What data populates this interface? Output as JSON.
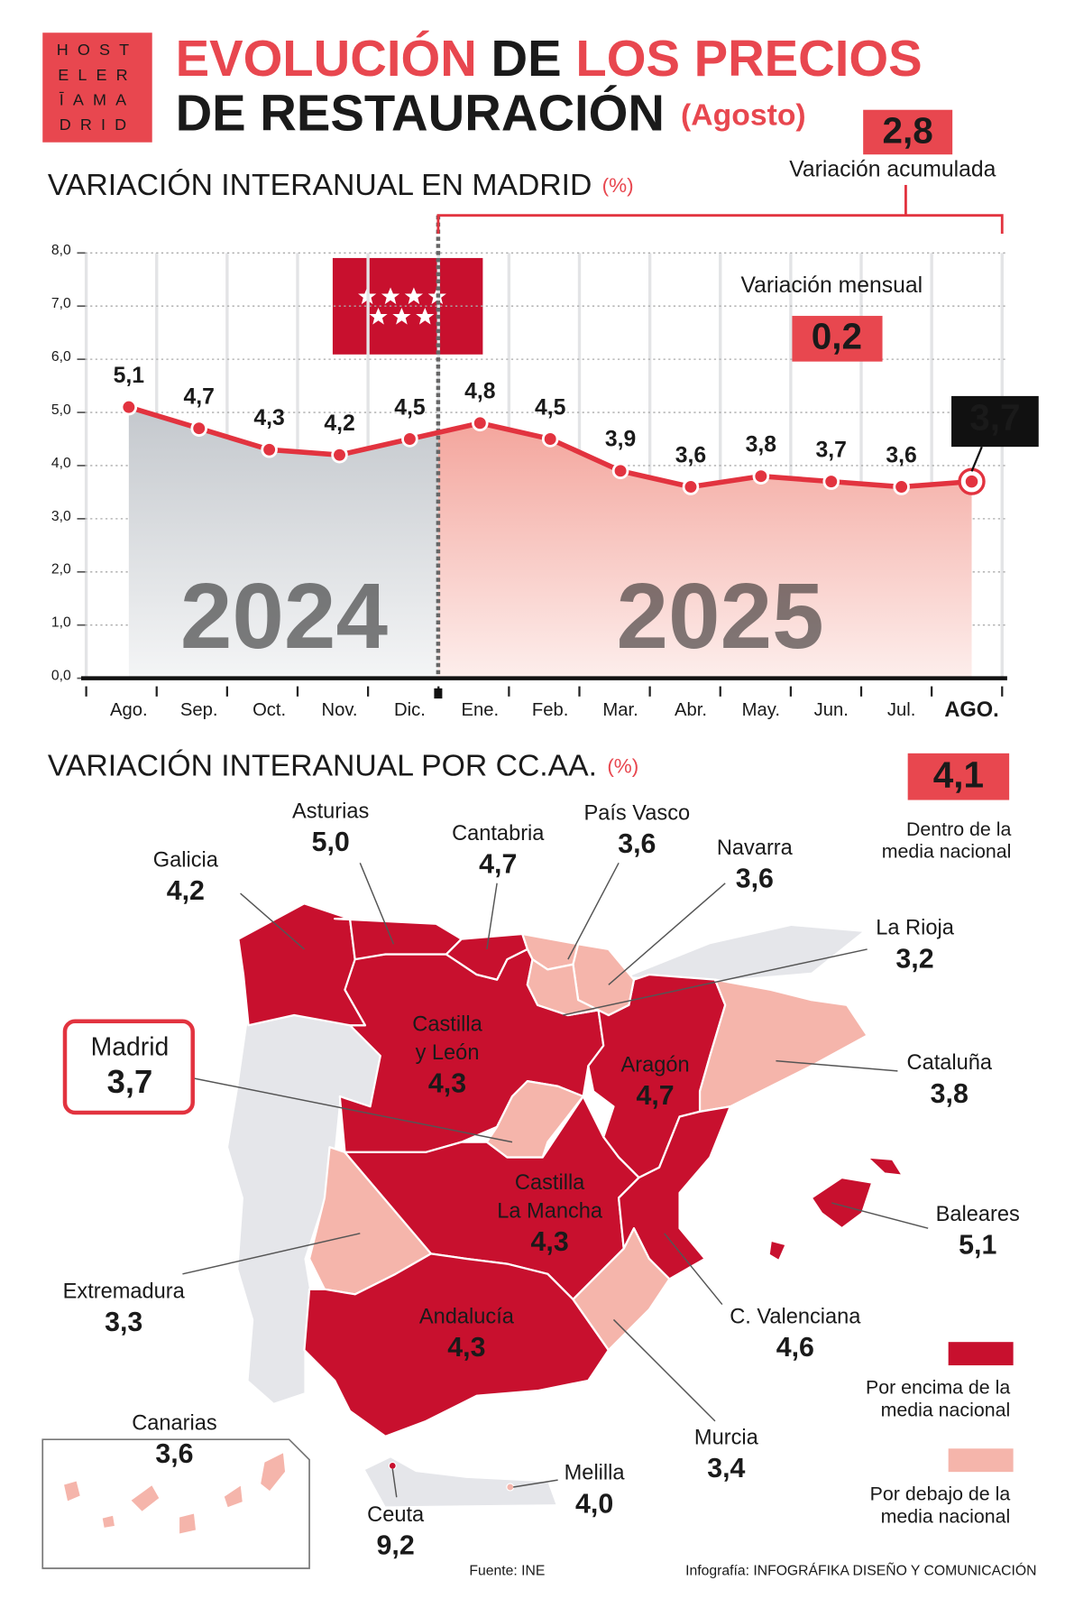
{
  "header": {
    "logo": [
      "HOST",
      "ELER",
      "ĪAMA",
      "DRID"
    ],
    "title_lines": [
      [
        {
          "text": "EVOLUCIÓN",
          "color": "#e8474f"
        },
        {
          "text": "DE",
          "color": "#1a1a1a"
        },
        {
          "text": "LOS PRECIOS",
          "color": "#e8474f"
        }
      ],
      [
        {
          "text": "DE RESTAURACIÓN",
          "color": "#1a1a1a"
        },
        {
          "text": "(Agosto)",
          "color": "#e8474f"
        }
      ]
    ]
  },
  "chart_data": {
    "type": "line",
    "title": "VARIACIÓN INTERANUAL EN MADRID",
    "unit": "(%)",
    "categories": [
      "Ago.",
      "Sep.",
      "Oct.",
      "Nov.",
      "Dic.",
      "Ene.",
      "Feb.",
      "Mar.",
      "Abr.",
      "May.",
      "Jun.",
      "Jul.",
      "AGO."
    ],
    "values": [
      5.1,
      4.7,
      4.3,
      4.2,
      4.5,
      4.8,
      4.5,
      3.9,
      3.6,
      3.8,
      3.7,
      3.6,
      3.7
    ],
    "value_labels": [
      "5,1",
      "4,7",
      "4,3",
      "4,2",
      "4,5",
      "4,8",
      "4,5",
      "3,9",
      "3,6",
      "3,8",
      "3,7",
      "3,6",
      "3,7"
    ],
    "color": "#e2333f",
    "ylim": [
      0,
      8
    ],
    "yticks": [
      {
        "value": 0,
        "label": "0,0"
      },
      {
        "value": 1,
        "label": "1,0"
      },
      {
        "value": 2,
        "label": "2,0"
      },
      {
        "value": 3,
        "label": "3,0"
      },
      {
        "value": 4,
        "label": "4,0"
      },
      {
        "value": 5,
        "label": "5,0"
      },
      {
        "value": 6,
        "label": "6,0"
      },
      {
        "value": 7,
        "label": "7,0"
      },
      {
        "value": 8,
        "label": "8,0"
      }
    ],
    "grid": true,
    "year_labels": [
      "2024",
      "2025"
    ],
    "annotations": {
      "accumulated": {
        "label": "2,8",
        "text": "Variación acumulada"
      },
      "monthly": {
        "label": "0,2",
        "text": "Variación mensual"
      }
    }
  },
  "regional": {
    "title": "VARIACIÓN INTERANUAL POR CC.AA.",
    "unit": "(%)",
    "national": {
      "value": "4,1",
      "text_lines": [
        "Dentro de la",
        "media nacional"
      ]
    },
    "legend": [
      {
        "color": "#c8102e",
        "lines": [
          "Por encima de la",
          "media nacional"
        ]
      },
      {
        "color": "#f5b5ab",
        "lines": [
          "Por debajo de la",
          "media nacional"
        ]
      }
    ],
    "regions": [
      {
        "name_lines": [
          "Galicia"
        ],
        "value": "4,2",
        "color": "#c8102e"
      },
      {
        "name_lines": [
          "Asturias"
        ],
        "value": "5,0",
        "color": "#c8102e"
      },
      {
        "name_lines": [
          "Cantabria"
        ],
        "value": "4,7",
        "color": "#c8102e"
      },
      {
        "name_lines": [
          "País Vasco"
        ],
        "value": "3,6",
        "color": "#f5b5ab"
      },
      {
        "name_lines": [
          "Navarra"
        ],
        "value": "3,6",
        "color": "#f5b5ab"
      },
      {
        "name_lines": [
          "La Rioja"
        ],
        "value": "3,2",
        "color": "#f5b5ab"
      },
      {
        "name_lines": [
          "Castilla",
          "y León"
        ],
        "value": "4,3",
        "color": "#c8102e"
      },
      {
        "name_lines": [
          "Aragón"
        ],
        "value": "4,7",
        "color": "#c8102e"
      },
      {
        "name_lines": [
          "Cataluña"
        ],
        "value": "3,8",
        "color": "#f5b5ab"
      },
      {
        "name_lines": [
          "Madrid"
        ],
        "value": "3,7",
        "color": "#f5b5ab"
      },
      {
        "name_lines": [
          "Castilla",
          "La Mancha"
        ],
        "value": "4,3",
        "color": "#c8102e"
      },
      {
        "name_lines": [
          "Extremadura"
        ],
        "value": "3,3",
        "color": "#f5b5ab"
      },
      {
        "name_lines": [
          "Andalucía"
        ],
        "value": "4,3",
        "color": "#c8102e"
      },
      {
        "name_lines": [
          "C. Valenciana"
        ],
        "value": "4,6",
        "color": "#c8102e"
      },
      {
        "name_lines": [
          "Murcia"
        ],
        "value": "3,4",
        "color": "#f5b5ab"
      },
      {
        "name_lines": [
          "Baleares"
        ],
        "value": "5,1",
        "color": "#c8102e"
      },
      {
        "name_lines": [
          "Canarias"
        ],
        "value": "3,6",
        "color": "#f5b5ab"
      },
      {
        "name_lines": [
          "Ceuta"
        ],
        "value": "9,2",
        "color": "#c8102e"
      },
      {
        "name_lines": [
          "Melilla"
        ],
        "value": "4,0",
        "color": "#f5b5ab"
      }
    ]
  },
  "footer": {
    "source": "Fuente: INE",
    "credit": "Infografía: INFOGRÁFIKA DISEÑO Y COMUNICACIÓN"
  }
}
